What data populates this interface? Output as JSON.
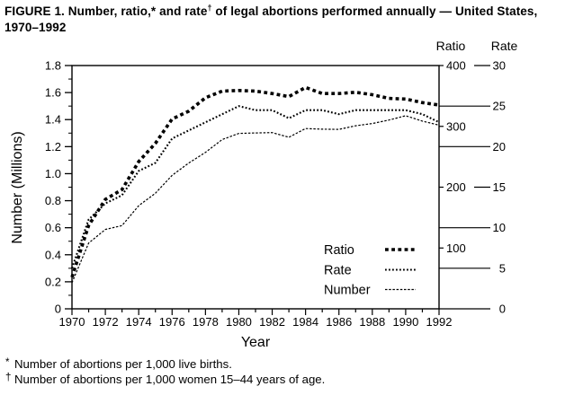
{
  "figure": {
    "title_prefix": "FIGURE 1. Number, ratio,* and rate",
    "title_sup": "†",
    "title_suffix": " of legal abortions performed annually — United States, 1970–1992"
  },
  "footnotes": [
    {
      "marker": "*",
      "text": "Number of abortions per 1,000 live births."
    },
    {
      "marker": "†",
      "text": "Number of abortions per 1,000 women 15–44 years of age."
    }
  ],
  "chart_data": {
    "type": "line",
    "title": "FIGURE 1. Number, ratio, and rate of legal abortions performed annually — United States, 1970–1992",
    "x": [
      1970,
      1971,
      1972,
      1973,
      1974,
      1975,
      1976,
      1977,
      1978,
      1979,
      1980,
      1981,
      1982,
      1983,
      1984,
      1985,
      1986,
      1987,
      1988,
      1989,
      1990,
      1991,
      1992
    ],
    "xlabel": "Year",
    "x_tick_labels": [
      1970,
      1972,
      1974,
      1976,
      1978,
      1980,
      1982,
      1984,
      1986,
      1988,
      1990,
      1992
    ],
    "grid": false,
    "axes": {
      "left": {
        "label": "Number (Millions)",
        "range": [
          0,
          1.8
        ],
        "tick_step": 0.2,
        "minor_step": 0.1
      },
      "right_ratio": {
        "header": "Ratio",
        "range": [
          0,
          400
        ],
        "ticks": [
          100,
          200,
          300,
          400
        ]
      },
      "right_rate": {
        "header": "Rate",
        "range": [
          0,
          30
        ],
        "ticks": [
          0,
          5,
          10,
          15,
          20,
          25,
          30
        ]
      }
    },
    "series": [
      {
        "name": "Ratio",
        "axis": "right_ratio",
        "style": "bold-dotted",
        "values": [
          52,
          137,
          180,
          196,
          242,
          272,
          312,
          325,
          347,
          358,
          359,
          358,
          354,
          349,
          364,
          354,
          354,
          356,
          352,
          346,
          345,
          339,
          335
        ]
      },
      {
        "name": "Rate",
        "axis": "right_rate",
        "style": "medium-dotted",
        "values": [
          5,
          11,
          13,
          14,
          17,
          18,
          21,
          22,
          23,
          24,
          25,
          24.5,
          24.5,
          23.5,
          24.5,
          24.5,
          24,
          24.5,
          24.5,
          24.5,
          24.5,
          24,
          23
        ]
      },
      {
        "name": "Number",
        "axis": "left",
        "style": "thin-dotted",
        "values": [
          0.193,
          0.486,
          0.587,
          0.616,
          0.763,
          0.855,
          0.988,
          1.079,
          1.158,
          1.252,
          1.298,
          1.301,
          1.304,
          1.269,
          1.334,
          1.329,
          1.328,
          1.354,
          1.371,
          1.397,
          1.429,
          1.389,
          1.359
        ]
      }
    ],
    "legend": {
      "position": "inside-lower-right",
      "entries": [
        "Ratio",
        "Rate",
        "Number"
      ]
    },
    "colors": {
      "foreground": "#000000",
      "background": "#ffffff"
    }
  }
}
